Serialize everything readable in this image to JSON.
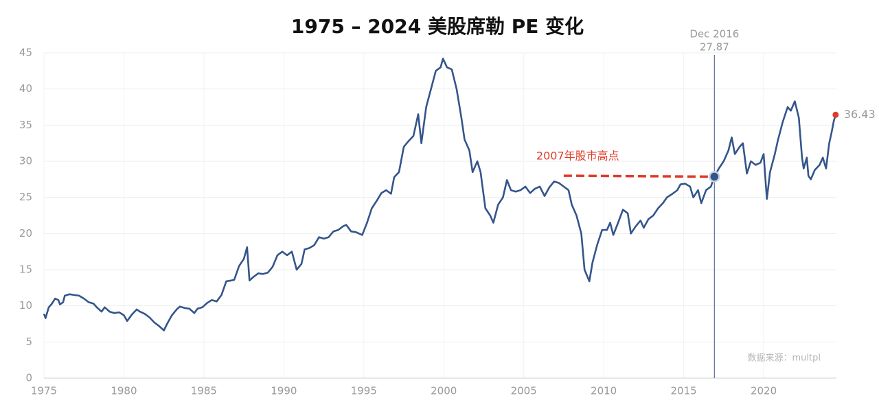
{
  "chart_data": {
    "type": "line",
    "title": "1975 – 2024 美股席勒 PE 变化",
    "x": [
      1975.0,
      1975.1,
      1975.3,
      1975.5,
      1975.7,
      1975.9,
      1976.0,
      1976.2,
      1976.3,
      1976.6,
      1976.9,
      1977.2,
      1977.5,
      1977.8,
      1978.1,
      1978.3,
      1978.6,
      1978.8,
      1979.1,
      1979.4,
      1979.7,
      1980.0,
      1980.2,
      1980.5,
      1980.8,
      1981.0,
      1981.3,
      1981.6,
      1981.9,
      1982.2,
      1982.5,
      1982.7,
      1983.0,
      1983.3,
      1983.5,
      1983.8,
      1984.1,
      1984.4,
      1984.6,
      1984.9,
      1985.2,
      1985.5,
      1985.8,
      1986.1,
      1986.4,
      1986.7,
      1986.9,
      1987.2,
      1987.5,
      1987.7,
      1987.85,
      1988.1,
      1988.4,
      1988.7,
      1989.0,
      1989.3,
      1989.6,
      1989.9,
      1990.2,
      1990.5,
      1990.8,
      1991.1,
      1991.3,
      1991.6,
      1991.9,
      1992.2,
      1992.5,
      1992.8,
      1993.1,
      1993.4,
      1993.7,
      1993.9,
      1994.2,
      1994.5,
      1994.9,
      1995.2,
      1995.5,
      1995.8,
      1996.1,
      1996.4,
      1996.7,
      1996.9,
      1997.2,
      1997.5,
      1997.8,
      1998.1,
      1998.4,
      1998.6,
      1998.9,
      1999.2,
      1999.5,
      1999.8,
      1999.95,
      2000.2,
      2000.5,
      2000.8,
      2001.1,
      2001.3,
      2001.6,
      2001.8,
      2002.1,
      2002.3,
      2002.6,
      2002.9,
      2003.1,
      2003.4,
      2003.7,
      2003.95,
      2004.2,
      2004.5,
      2004.8,
      2005.1,
      2005.4,
      2005.7,
      2006.0,
      2006.3,
      2006.6,
      2006.9,
      2007.2,
      2007.5,
      2007.8,
      2008.0,
      2008.3,
      2008.6,
      2008.8,
      2009.1,
      2009.3,
      2009.6,
      2009.9,
      2010.2,
      2010.4,
      2010.6,
      2010.9,
      2011.2,
      2011.5,
      2011.7,
      2012.0,
      2012.3,
      2012.5,
      2012.8,
      2013.1,
      2013.4,
      2013.7,
      2013.95,
      2014.3,
      2014.6,
      2014.8,
      2015.1,
      2015.4,
      2015.6,
      2015.9,
      2016.1,
      2016.4,
      2016.7,
      2016.92,
      2017.2,
      2017.5,
      2017.8,
      2018.0,
      2018.2,
      2018.5,
      2018.7,
      2018.95,
      2019.2,
      2019.5,
      2019.8,
      2020.0,
      2020.2,
      2020.4,
      2020.7,
      2020.9,
      2021.2,
      2021.5,
      2021.7,
      2021.95,
      2022.2,
      2022.4,
      2022.5,
      2022.7,
      2022.8,
      2022.95,
      2023.2,
      2023.5,
      2023.7,
      2023.9,
      2024.1,
      2024.25,
      2024.38,
      2024.5
    ],
    "values": [
      8.9,
      8.3,
      9.8,
      10.3,
      11.0,
      10.8,
      10.2,
      10.5,
      11.4,
      11.6,
      11.5,
      11.4,
      11.0,
      10.5,
      10.3,
      9.8,
      9.2,
      9.8,
      9.2,
      9.0,
      9.1,
      8.7,
      7.9,
      8.8,
      9.5,
      9.2,
      8.9,
      8.4,
      7.7,
      7.2,
      6.6,
      7.5,
      8.7,
      9.5,
      9.9,
      9.7,
      9.6,
      9.0,
      9.6,
      9.8,
      10.4,
      10.8,
      10.6,
      11.5,
      13.4,
      13.5,
      13.6,
      15.5,
      16.5,
      18.1,
      13.5,
      14.0,
      14.5,
      14.4,
      14.6,
      15.4,
      17.0,
      17.5,
      17.0,
      17.5,
      15.0,
      15.8,
      17.8,
      18.0,
      18.4,
      19.5,
      19.3,
      19.5,
      20.3,
      20.5,
      21.0,
      21.2,
      20.3,
      20.2,
      19.8,
      21.5,
      23.5,
      24.5,
      25.6,
      26.0,
      25.5,
      27.8,
      28.5,
      32.0,
      32.8,
      33.5,
      36.5,
      32.5,
      37.5,
      40.0,
      42.5,
      43.0,
      44.2,
      43.0,
      42.7,
      40.0,
      36.0,
      33.0,
      31.5,
      28.5,
      30.0,
      28.5,
      23.5,
      22.5,
      21.5,
      24.0,
      25.0,
      27.4,
      26.0,
      25.8,
      26.0,
      26.5,
      25.6,
      26.2,
      26.5,
      25.2,
      26.4,
      27.2,
      27.0,
      26.5,
      26.0,
      24.0,
      22.5,
      20.0,
      15.0,
      13.4,
      16.0,
      18.5,
      20.5,
      20.5,
      21.5,
      19.8,
      21.5,
      23.3,
      22.8,
      20.0,
      21.0,
      21.8,
      20.8,
      22.0,
      22.5,
      23.5,
      24.2,
      25.0,
      25.5,
      26.0,
      26.8,
      26.9,
      26.5,
      25.0,
      26.0,
      24.2,
      26.0,
      26.5,
      27.87,
      29.0,
      30.0,
      31.5,
      33.3,
      31.0,
      32.0,
      32.5,
      28.3,
      30.0,
      29.5,
      29.8,
      31.0,
      24.8,
      28.5,
      31.0,
      33.0,
      35.5,
      37.5,
      37.0,
      38.3,
      36.0,
      30.5,
      29.0,
      30.5,
      28.0,
      27.5,
      28.8,
      29.5,
      30.5,
      29.0,
      32.5,
      34.0,
      35.5,
      36.43
    ],
    "color": "#34558b",
    "xlim": [
      1975,
      2024.55
    ],
    "xticks": [
      1975,
      1980,
      1985,
      1990,
      1995,
      2000,
      2005,
      2010,
      2015,
      2020
    ],
    "ylim": [
      0,
      45
    ],
    "yticks": [
      0,
      5,
      10,
      15,
      20,
      25,
      30,
      35,
      40,
      45
    ],
    "grid": true,
    "highlight": {
      "label": "Dec 2016",
      "x": 2016.92,
      "value": 27.87
    },
    "annotation": {
      "text": "2007年股市高点",
      "color": "#e03b2a",
      "x": [
        2007.5,
        2016.92
      ],
      "y": [
        28,
        27.87
      ]
    },
    "end_color": "#e03b2a",
    "source": "数据来源：multpl"
  }
}
